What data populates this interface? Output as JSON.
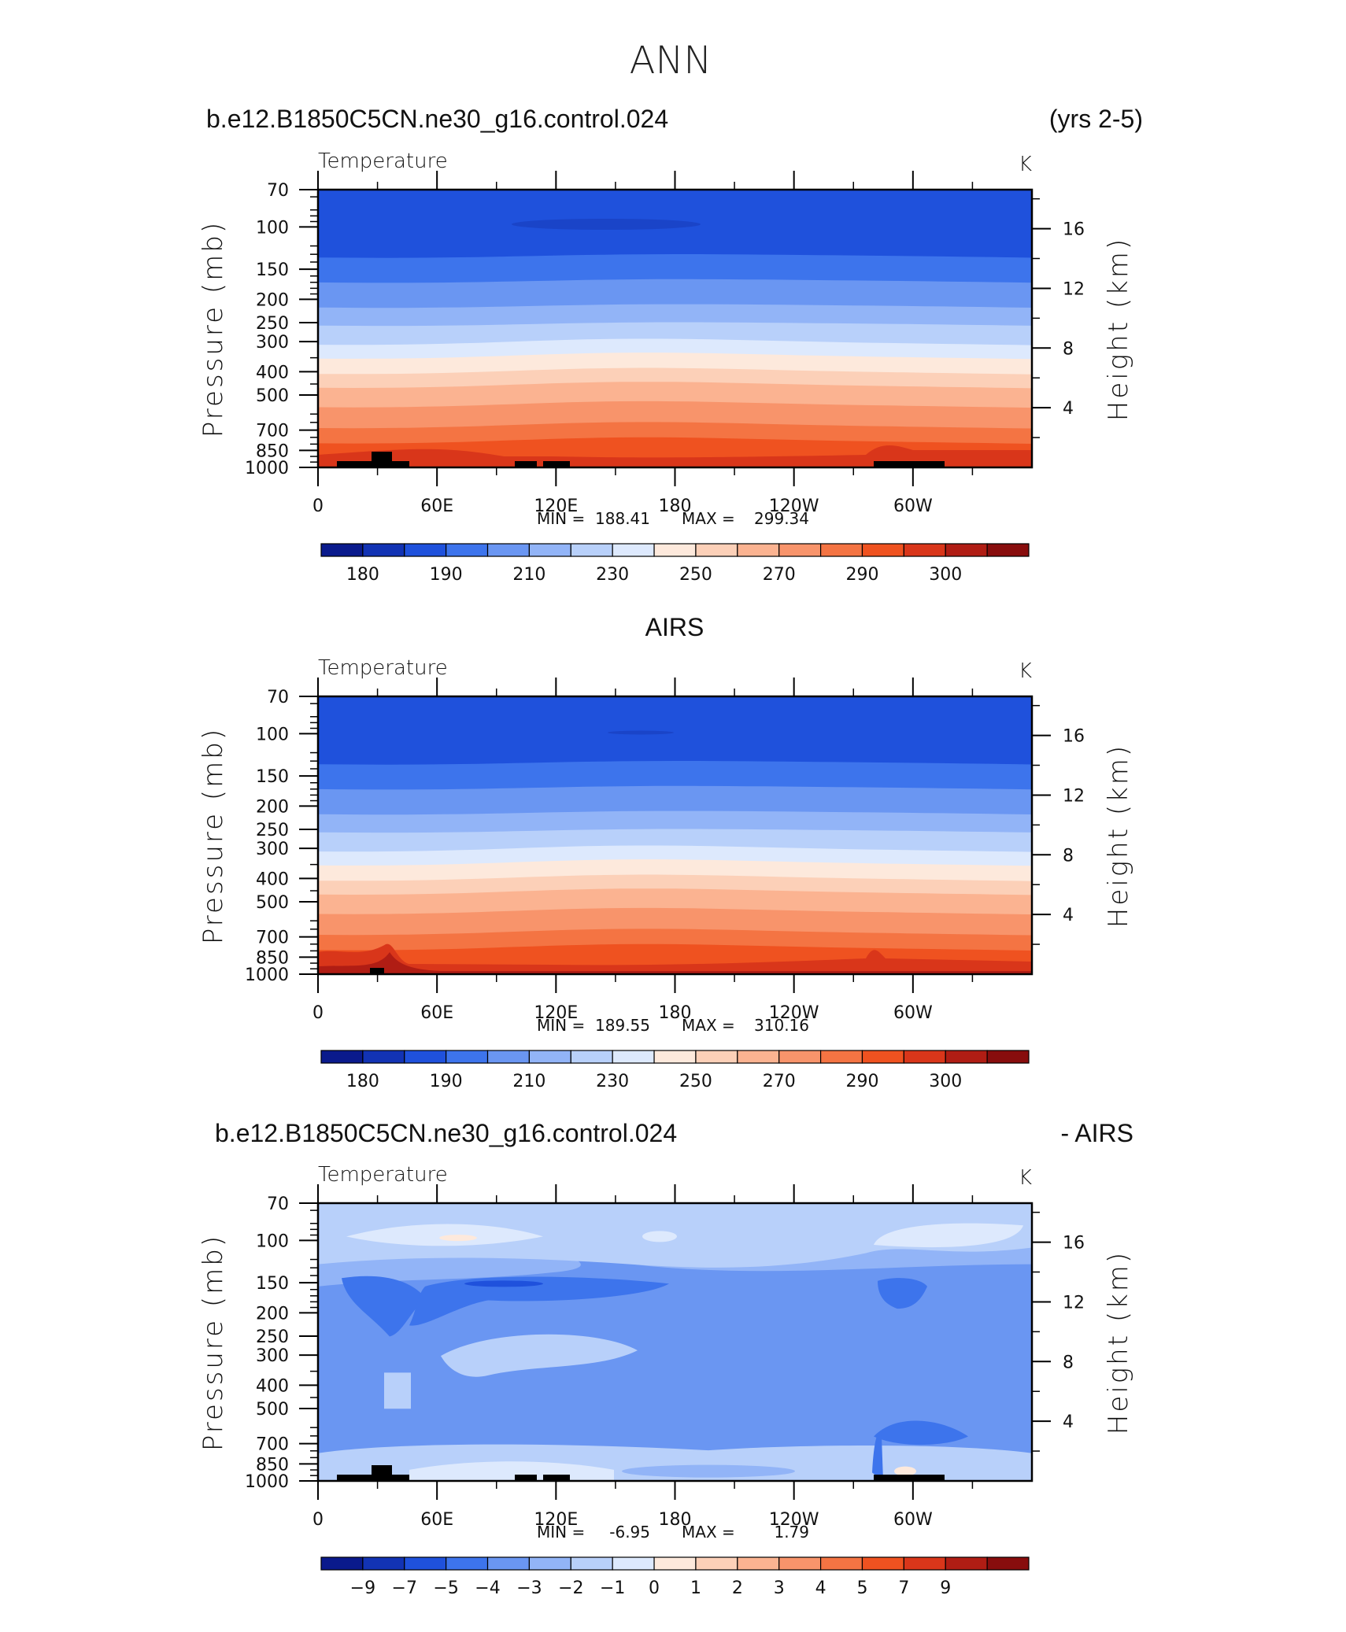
{
  "page": {
    "title": "ANN",
    "panel_titles": {
      "top_left": "b.e12.B1850C5CN.ne30_g16.control.024",
      "top_right": "(yrs 2-5)",
      "middle": "AIRS",
      "bottom_left": "b.e12.B1850C5CN.ne30_g16.control.024",
      "bottom_right": "- AIRS"
    }
  },
  "chart_data": [
    {
      "type": "heatmap",
      "variable_label": "Temperature",
      "units": "K",
      "ylabel_left": "Pressure (mb)",
      "ylabel_right": "Height (km)",
      "x_ticks": [
        "0",
        "60E",
        "120E",
        "180",
        "120W",
        "60W"
      ],
      "x_tick_degrees": [
        0,
        60,
        120,
        180,
        240,
        300
      ],
      "xlim": [
        0,
        360
      ],
      "y_ticks": [
        "70",
        "100",
        "150",
        "200",
        "250",
        "300",
        "400",
        "500",
        "700",
        "850",
        "1000"
      ],
      "y_tick_values": [
        70,
        100,
        150,
        200,
        250,
        300,
        400,
        500,
        700,
        850,
        1000
      ],
      "ylim": [
        70,
        1000
      ],
      "y_scale": "log-pressure",
      "right_ticks": [
        "16",
        "12",
        "8",
        "4"
      ],
      "stats": {
        "min_label": "MIN =",
        "min": "188.41",
        "max_label": "MAX =",
        "max": "299.34"
      },
      "colorbar_labels": [
        "180",
        "190",
        "210",
        "230",
        "250",
        "270",
        "290",
        "300"
      ],
      "colorbar_colors": [
        "#0a1a8c",
        "#1233b4",
        "#1f51dc",
        "#3d74ec",
        "#6a96f2",
        "#92b4f7",
        "#b8d0fa",
        "#dde9fd",
        "#fde9dc",
        "#fcd0b8",
        "#fbb391",
        "#f8946b",
        "#f47443",
        "#ef5220",
        "#d9361a",
        "#b01d14",
        "#880d0d"
      ]
    },
    {
      "type": "heatmap",
      "variable_label": "Temperature",
      "units": "K",
      "ylabel_left": "Pressure (mb)",
      "ylabel_right": "Height (km)",
      "x_ticks": [
        "0",
        "60E",
        "120E",
        "180",
        "120W",
        "60W"
      ],
      "x_tick_degrees": [
        0,
        60,
        120,
        180,
        240,
        300
      ],
      "xlim": [
        0,
        360
      ],
      "y_ticks": [
        "70",
        "100",
        "150",
        "200",
        "250",
        "300",
        "400",
        "500",
        "700",
        "850",
        "1000"
      ],
      "y_tick_values": [
        70,
        100,
        150,
        200,
        250,
        300,
        400,
        500,
        700,
        850,
        1000
      ],
      "ylim": [
        70,
        1000
      ],
      "y_scale": "log-pressure",
      "right_ticks": [
        "16",
        "12",
        "8",
        "4"
      ],
      "stats": {
        "min_label": "MIN =",
        "min": "189.55",
        "max_label": "MAX =",
        "max": "310.16"
      },
      "colorbar_labels": [
        "180",
        "190",
        "210",
        "230",
        "250",
        "270",
        "290",
        "300"
      ],
      "colorbar_colors": [
        "#0a1a8c",
        "#1233b4",
        "#1f51dc",
        "#3d74ec",
        "#6a96f2",
        "#92b4f7",
        "#b8d0fa",
        "#dde9fd",
        "#fde9dc",
        "#fcd0b8",
        "#fbb391",
        "#f8946b",
        "#f47443",
        "#ef5220",
        "#d9361a",
        "#b01d14",
        "#880d0d"
      ]
    },
    {
      "type": "heatmap",
      "variable_label": "Temperature",
      "units": "K",
      "ylabel_left": "Pressure (mb)",
      "ylabel_right": "Height (km)",
      "x_ticks": [
        "0",
        "60E",
        "120E",
        "180",
        "120W",
        "60W"
      ],
      "x_tick_degrees": [
        0,
        60,
        120,
        180,
        240,
        300
      ],
      "xlim": [
        0,
        360
      ],
      "y_ticks": [
        "70",
        "100",
        "150",
        "200",
        "250",
        "300",
        "400",
        "500",
        "700",
        "850",
        "1000"
      ],
      "y_tick_values": [
        70,
        100,
        150,
        200,
        250,
        300,
        400,
        500,
        700,
        850,
        1000
      ],
      "ylim": [
        70,
        1000
      ],
      "y_scale": "log-pressure",
      "right_ticks": [
        "16",
        "12",
        "8",
        "4"
      ],
      "stats": {
        "min_label": "MIN =",
        "min": "-6.95",
        "max_label": "MAX =",
        "max": "1.79"
      },
      "colorbar_labels": [
        "−9",
        "−7",
        "−5",
        "−4",
        "−3",
        "−2",
        "−1",
        "0",
        "1",
        "2",
        "3",
        "4",
        "5",
        "7",
        "9"
      ],
      "colorbar_colors": [
        "#0a1a8c",
        "#1233b4",
        "#1f51dc",
        "#3d74ec",
        "#6a96f2",
        "#92b4f7",
        "#b8d0fa",
        "#dde9fd",
        "#fde9dc",
        "#fcd0b8",
        "#fbb391",
        "#f8946b",
        "#f47443",
        "#ef5220",
        "#d9361a",
        "#b01d14",
        "#880d0d"
      ]
    }
  ]
}
